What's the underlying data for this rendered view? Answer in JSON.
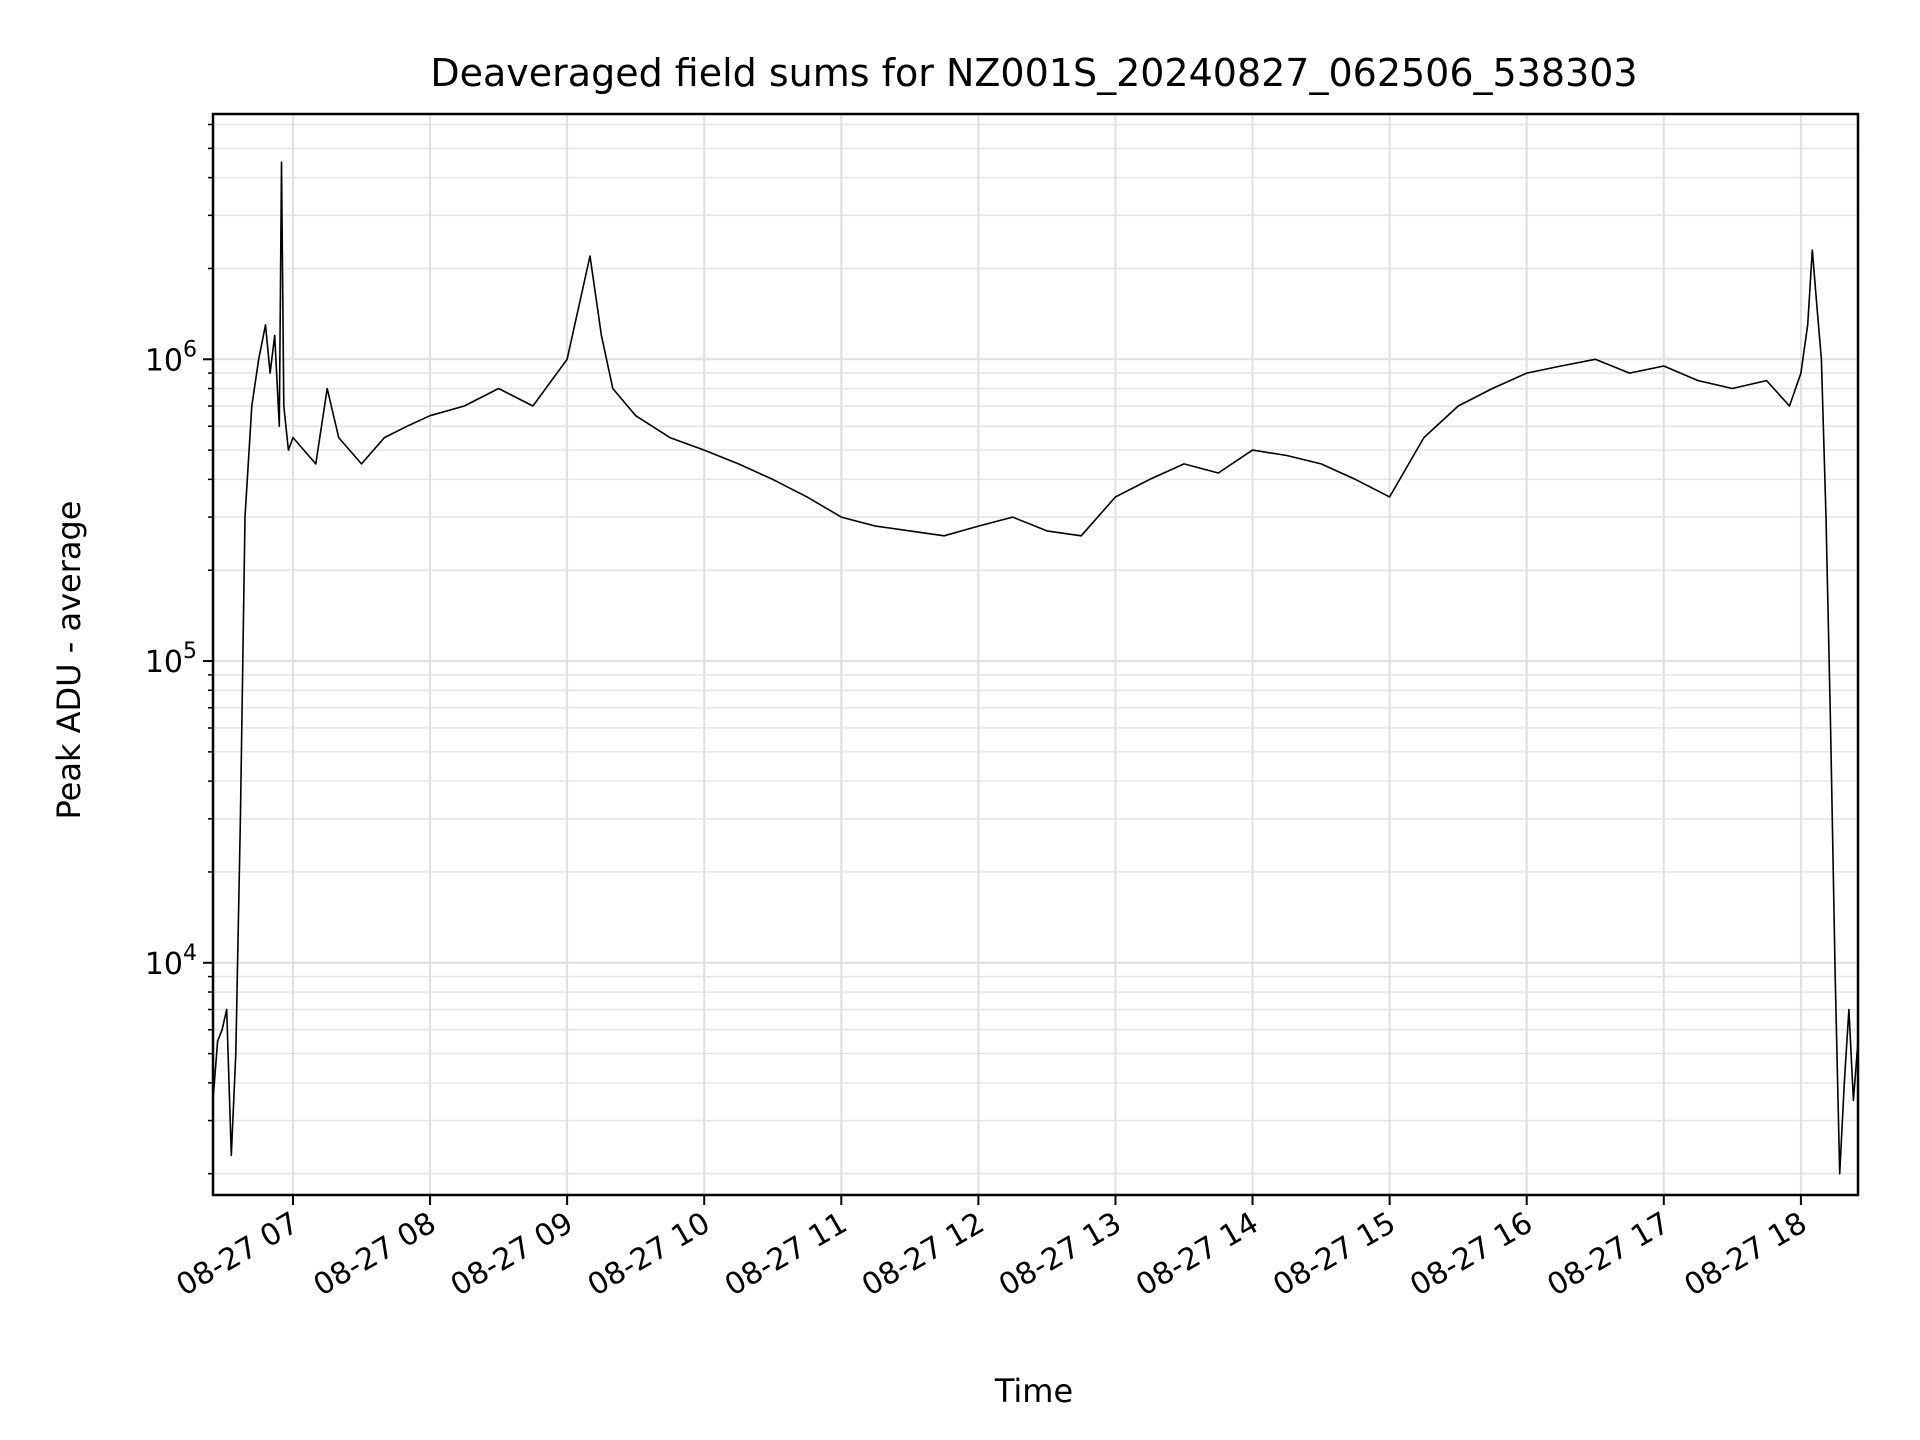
{
  "chart_data": {
    "type": "line",
    "title": "Deaveraged field sums for NZ001S_20240827_062506_538303",
    "xlabel": "Time",
    "ylabel": "Peak ADU - average",
    "yscale": "log",
    "xlim": [
      "2024-08-27 06:25",
      "2024-08-27 18:25"
    ],
    "ylim": [
      1700,
      6500000
    ],
    "grid": true,
    "grid_minor": true,
    "line_color": "#000000",
    "x_tick_labels": [
      "08-27 07",
      "08-27 08",
      "08-27 09",
      "08-27 10",
      "08-27 11",
      "08-27 12",
      "08-27 13",
      "08-27 14",
      "08-27 15",
      "08-27 16",
      "08-27 17",
      "08-27 18"
    ],
    "y_tick_labels": [
      {
        "value": 10000,
        "base": "10",
        "exp": "4"
      },
      {
        "value": 100000,
        "base": "10",
        "exp": "5"
      },
      {
        "value": 1000000,
        "base": "10",
        "exp": "6"
      }
    ],
    "series": [
      {
        "x": [
          "2024-08-27 06:25",
          "2024-08-27 06:27",
          "2024-08-27 06:29",
          "2024-08-27 06:31",
          "2024-08-27 06:33",
          "2024-08-27 06:35",
          "2024-08-27 06:37",
          "2024-08-27 06:39",
          "2024-08-27 06:42",
          "2024-08-27 06:45",
          "2024-08-27 06:48",
          "2024-08-27 06:50",
          "2024-08-27 06:52",
          "2024-08-27 06:54",
          "2024-08-27 06:55",
          "2024-08-27 06:56",
          "2024-08-27 06:58",
          "2024-08-27 07:00",
          "2024-08-27 07:10",
          "2024-08-27 07:15",
          "2024-08-27 07:20",
          "2024-08-27 07:30",
          "2024-08-27 07:40",
          "2024-08-27 07:50",
          "2024-08-27 08:00",
          "2024-08-27 08:15",
          "2024-08-27 08:30",
          "2024-08-27 08:45",
          "2024-08-27 09:00",
          "2024-08-27 09:10",
          "2024-08-27 09:15",
          "2024-08-27 09:20",
          "2024-08-27 09:30",
          "2024-08-27 09:45",
          "2024-08-27 10:00",
          "2024-08-27 10:15",
          "2024-08-27 10:30",
          "2024-08-27 10:45",
          "2024-08-27 11:00",
          "2024-08-27 11:15",
          "2024-08-27 11:30",
          "2024-08-27 11:45",
          "2024-08-27 12:00",
          "2024-08-27 12:15",
          "2024-08-27 12:30",
          "2024-08-27 12:45",
          "2024-08-27 13:00",
          "2024-08-27 13:15",
          "2024-08-27 13:30",
          "2024-08-27 13:45",
          "2024-08-27 14:00",
          "2024-08-27 14:15",
          "2024-08-27 14:30",
          "2024-08-27 14:45",
          "2024-08-27 15:00",
          "2024-08-27 15:15",
          "2024-08-27 15:30",
          "2024-08-27 15:45",
          "2024-08-27 16:00",
          "2024-08-27 16:15",
          "2024-08-27 16:30",
          "2024-08-27 16:45",
          "2024-08-27 17:00",
          "2024-08-27 17:15",
          "2024-08-27 17:30",
          "2024-08-27 17:45",
          "2024-08-27 17:55",
          "2024-08-27 18:00",
          "2024-08-27 18:03",
          "2024-08-27 18:05",
          "2024-08-27 18:07",
          "2024-08-27 18:09",
          "2024-08-27 18:11",
          "2024-08-27 18:13",
          "2024-08-27 18:15",
          "2024-08-27 18:17",
          "2024-08-27 18:19",
          "2024-08-27 18:21",
          "2024-08-27 18:23",
          "2024-08-27 18:25"
        ],
        "y": [
          3500,
          5500,
          6000,
          7000,
          2300,
          5000,
          30000,
          300000,
          700000,
          1000000,
          1300000,
          900000,
          1200000,
          600000,
          4500000,
          700000,
          500000,
          550000,
          450000,
          800000,
          550000,
          450000,
          550000,
          600000,
          650000,
          700000,
          800000,
          700000,
          1000000,
          2200000,
          1200000,
          800000,
          650000,
          550000,
          500000,
          450000,
          400000,
          350000,
          300000,
          280000,
          270000,
          260000,
          280000,
          300000,
          270000,
          260000,
          350000,
          400000,
          450000,
          420000,
          500000,
          480000,
          450000,
          400000,
          350000,
          550000,
          700000,
          800000,
          900000,
          950000,
          1000000,
          900000,
          950000,
          850000,
          800000,
          850000,
          700000,
          900000,
          1300000,
          2300000,
          1500000,
          1000000,
          300000,
          60000,
          9000,
          2000,
          4000,
          7000,
          3500,
          5500
        ]
      }
    ]
  }
}
